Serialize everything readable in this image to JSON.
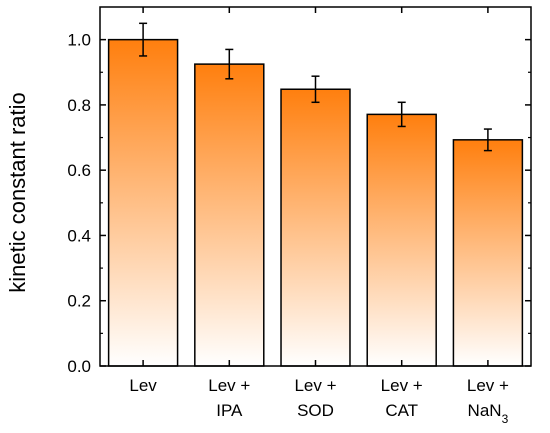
{
  "chart_data": {
    "type": "bar",
    "title": "",
    "xlabel": "",
    "ylabel": "kinetic constant ratio",
    "ylim": [
      0,
      1.1
    ],
    "yticks": [
      0.0,
      0.2,
      0.4,
      0.6,
      0.8,
      1.0
    ],
    "ytick_labels": [
      "0.0",
      "0.2",
      "0.4",
      "0.6",
      "0.8",
      "1.0"
    ],
    "grid": false,
    "legend": "none",
    "categories": [
      {
        "lines": [
          "Lev"
        ],
        "sub": ""
      },
      {
        "lines": [
          "Lev +",
          "IPA"
        ],
        "sub": ""
      },
      {
        "lines": [
          "Lev +",
          "SOD"
        ],
        "sub": ""
      },
      {
        "lines": [
          "Lev +",
          "CAT"
        ],
        "sub": ""
      },
      {
        "lines": [
          "Lev +",
          "NaN"
        ],
        "sub": "3"
      }
    ],
    "values": [
      1.0,
      0.925,
      0.848,
      0.771,
      0.693
    ],
    "errors": [
      0.05,
      0.045,
      0.04,
      0.037,
      0.033
    ],
    "colors": {
      "bar_gradient_top": "#ff7f0e",
      "bar_gradient_bottom": "#ffffff",
      "bar_edge": "#000000",
      "axis": "#000000"
    }
  }
}
